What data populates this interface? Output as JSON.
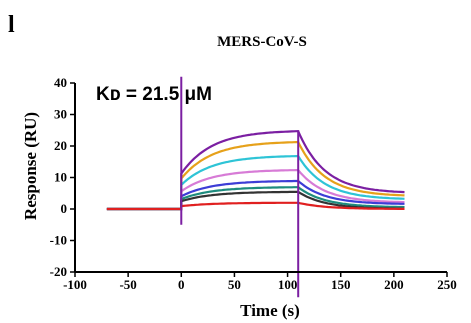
{
  "panel_label": "l",
  "chart_data": {
    "type": "line",
    "title": "MERS-CoV-S",
    "annotation": "Kᴅ = 21.5 μM",
    "xlabel": "Time (s)",
    "ylabel": "Response (RU)",
    "xlim": [
      -100,
      250
    ],
    "ylim": [
      -20,
      40
    ],
    "xticks": [
      -100,
      -50,
      0,
      50,
      100,
      150,
      200,
      250
    ],
    "yticks": [
      -20,
      -10,
      0,
      10,
      20,
      30,
      40
    ],
    "grid": false,
    "legend": "none",
    "injection_start_s": 0,
    "dissociation_start_s": 110,
    "end_s": 210,
    "baseline_start_s": -70,
    "series": [
      {
        "color": "#7b1fa2",
        "plateau": 25.0,
        "end": 5.0
      },
      {
        "color": "#e6a11a",
        "plateau": 21.5,
        "end": 4.0
      },
      {
        "color": "#2ec4d6",
        "plateau": 17.0,
        "end": 3.0
      },
      {
        "color": "#d77bd6",
        "plateau": 12.5,
        "end": 2.0
      },
      {
        "color": "#3d3dd6",
        "plateau": 9.0,
        "end": 1.5
      },
      {
        "color": "#1e8c7e",
        "plateau": 7.0,
        "end": 0.5
      },
      {
        "color": "#333333",
        "plateau": 5.5,
        "end": 0.0
      },
      {
        "color": "#e02020",
        "plateau": 2.0,
        "end": 0.0
      }
    ],
    "spikes": [
      {
        "x": 0,
        "y_top": 42,
        "y_bottom": -5,
        "color": "#7b1fa2"
      },
      {
        "x": 110,
        "y_top": 25,
        "y_bottom": -28,
        "color": "#7b1fa2"
      }
    ]
  }
}
